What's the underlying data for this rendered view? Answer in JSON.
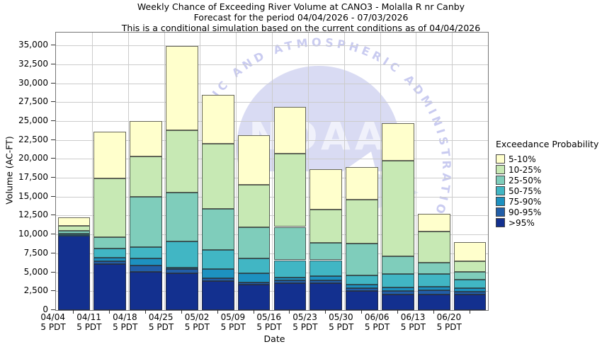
{
  "title": {
    "line1": "Weekly Chance of Exceeding River Volume at CANO3 - Molalla R nr Canby",
    "line2": "Forecast for the period 04/04/2026 - 07/03/2026",
    "line3": "This is a conditional simulation based on the current conditions as of 04/04/2026"
  },
  "axes": {
    "y_title": "Volume (AC-FT)",
    "x_title": "Date",
    "y_tick_labels": [
      "0",
      "2,500",
      "5,000",
      "7,500",
      "10,000",
      "12,500",
      "15,000",
      "17,500",
      "20,000",
      "22,500",
      "25,000",
      "27,500",
      "30,000",
      "32,500",
      "35,000"
    ]
  },
  "x_categories": [
    {
      "date": "04/04",
      "time": "5 PDT"
    },
    {
      "date": "04/11",
      "time": "5 PDT"
    },
    {
      "date": "04/18",
      "time": "5 PDT"
    },
    {
      "date": "04/25",
      "time": "5 PDT"
    },
    {
      "date": "05/02",
      "time": "5 PDT"
    },
    {
      "date": "05/09",
      "time": "5 PDT"
    },
    {
      "date": "05/16",
      "time": "5 PDT"
    },
    {
      "date": "05/23",
      "time": "5 PDT"
    },
    {
      "date": "05/30",
      "time": "5 PDT"
    },
    {
      "date": "06/06",
      "time": "5 PDT"
    },
    {
      "date": "06/13",
      "time": "5 PDT"
    },
    {
      "date": "06/20",
      "time": "5 PDT"
    }
  ],
  "legend": {
    "title": "Exceedance Probability",
    "items": [
      {
        "label": "5-10%",
        "color": "#ffffcc"
      },
      {
        "label": "10-25%",
        "color": "#c7e9b4"
      },
      {
        "label": "25-50%",
        "color": "#7fcdbb"
      },
      {
        "label": "50-75%",
        "color": "#41b6c4"
      },
      {
        "label": "75-90%",
        "color": "#1d91c0"
      },
      {
        "label": "90-95%",
        "color": "#225ea8"
      },
      {
        "label": ">95%",
        "color": "#13308f"
      }
    ]
  },
  "watermark": {
    "arc_text": "NIC AND ATMOSPHERIC ADMINISTRATION",
    "logo_text": "NOAA",
    "color": "#d9dbf3",
    "text_color": "#c9cbf0"
  },
  "chart_data": {
    "type": "bar",
    "stacked": true,
    "title": "Weekly Chance of Exceeding River Volume at CANO3 - Molalla R nr Canby",
    "xlabel": "Date",
    "ylabel": "Volume (AC-FT)",
    "unit": "AC-FT",
    "ylim": [
      0,
      36700
    ],
    "y_ticks": [
      0,
      2500,
      5000,
      7500,
      10000,
      12500,
      15000,
      17500,
      20000,
      22500,
      25000,
      27500,
      30000,
      32500,
      35000
    ],
    "grid": true,
    "legend_position": "right",
    "categories": [
      "04/04",
      "04/11",
      "04/18",
      "04/25",
      "05/02",
      "05/09",
      "05/16",
      "05/23",
      "05/30",
      "06/06",
      "06/13",
      "06/20"
    ],
    "bands_bottom_to_top": [
      ">95%",
      "90-95%",
      "75-90%",
      "50-75%",
      "25-50%",
      "10-25%",
      "5-10%"
    ],
    "series": [
      {
        "name": ">95%",
        "color": "#13308f",
        "cumulative_top": [
          9800,
          6100,
          5100,
          4900,
          3850,
          3350,
          3600,
          3600,
          2500,
          2100,
          2100,
          2050
        ]
      },
      {
        "name": "90-95%",
        "color": "#225ea8",
        "cumulative_top": [
          9900,
          6450,
          5900,
          5400,
          4200,
          3650,
          3900,
          3900,
          2900,
          2550,
          2600,
          2400
        ]
      },
      {
        "name": "75-90%",
        "color": "#1d91c0",
        "cumulative_top": [
          10000,
          6900,
          6800,
          5600,
          5400,
          4900,
          4300,
          4450,
          3350,
          3000,
          3100,
          2900
        ]
      },
      {
        "name": "50-75%",
        "color": "#41b6c4",
        "cumulative_top": [
          10100,
          8100,
          8300,
          9100,
          8000,
          6850,
          6600,
          6600,
          4600,
          4750,
          4750,
          3980
        ]
      },
      {
        "name": "25-50%",
        "color": "#7fcdbb",
        "cumulative_top": [
          10460,
          9650,
          15000,
          15500,
          13400,
          11000,
          11000,
          8900,
          8800,
          7100,
          6300,
          5070
        ]
      },
      {
        "name": "10-25%",
        "color": "#c7e9b4",
        "cumulative_top": [
          11150,
          17400,
          20300,
          23800,
          22000,
          16600,
          20700,
          13300,
          14600,
          19800,
          10400,
          6475
        ]
      },
      {
        "name": "5-10%",
        "color": "#ffffcc",
        "cumulative_top": [
          12250,
          23600,
          25000,
          34900,
          28500,
          23100,
          26900,
          18600,
          18950,
          24700,
          12750,
          9000
        ]
      }
    ]
  }
}
